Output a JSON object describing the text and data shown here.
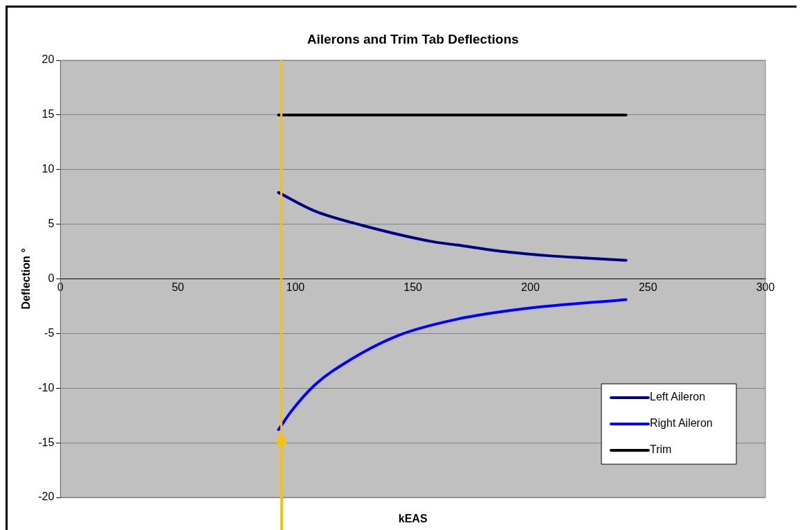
{
  "chart_data": {
    "type": "line",
    "title": "Ailerons and Trim Tab Deflections",
    "xlabel": "kEAS",
    "ylabel": "Deflection °",
    "xlim": [
      0,
      300
    ],
    "xticks": [
      0,
      50,
      100,
      150,
      200,
      250,
      300
    ],
    "ylim": [
      -20,
      20
    ],
    "yticks": [
      -20,
      -15,
      -10,
      -5,
      0,
      5,
      10,
      15,
      20
    ],
    "grid": "y",
    "legend": "bottom right",
    "marker": "none",
    "line_style": "solid",
    "series": [
      {
        "name": "Left Aileron",
        "color": "#000080",
        "x": [
          92.8,
          108.3,
          128.4,
          158.5,
          168.6,
          188.6,
          208.7,
          223.8,
          240.7
        ],
        "values": [
          7.9,
          6.2,
          4.9,
          3.4,
          3.1,
          2.5,
          2.1,
          1.9,
          1.7
        ]
      },
      {
        "name": "Right Aileron",
        "color": "#0000ff",
        "x": [
          92.8,
          98.3,
          108.3,
          123.4,
          143.5,
          168.6,
          198.7,
          240.7
        ],
        "values": [
          -13.8,
          -12.1,
          -9.7,
          -7.4,
          -5.2,
          -3.7,
          -2.7,
          -1.9
        ]
      },
      {
        "name": "Trim",
        "color": "#000000",
        "x": [
          92.8,
          240.7
        ],
        "values": [
          15,
          15
        ]
      }
    ],
    "ref_lines": [
      {
        "axis": "x",
        "value": 94,
        "color": "#ffc000"
      }
    ]
  }
}
